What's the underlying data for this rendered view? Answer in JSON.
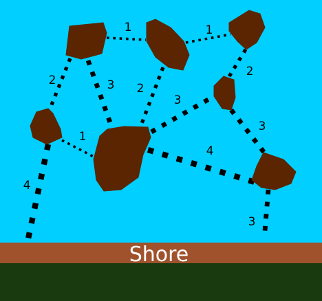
{
  "colors": {
    "water": "#00cfff",
    "rock": "#5a2500",
    "shore": "#a0522d",
    "land": "#183a0e",
    "bridge": "#000000",
    "shore_text": "#ffffff"
  },
  "shore": {
    "label": "Shore"
  },
  "rocks": [
    {
      "id": "rock-top-left"
    },
    {
      "id": "rock-top-middle"
    },
    {
      "id": "rock-top-right"
    },
    {
      "id": "rock-mid-right-small"
    },
    {
      "id": "rock-left"
    },
    {
      "id": "rock-center-large"
    },
    {
      "id": "rock-right-bottom"
    }
  ],
  "bridges": [
    {
      "id": "bridge-top-left-to-top-middle",
      "from": "rock-top-left",
      "to": "rock-top-middle",
      "label": "1"
    },
    {
      "id": "bridge-top-middle-to-top-right",
      "from": "rock-top-middle",
      "to": "rock-top-right",
      "label": "1"
    },
    {
      "id": "bridge-top-left-to-left",
      "from": "rock-top-left",
      "to": "rock-left",
      "label": "2"
    },
    {
      "id": "bridge-top-left-to-center",
      "from": "rock-top-left",
      "to": "rock-center-large",
      "label": "3"
    },
    {
      "id": "bridge-top-middle-to-center",
      "from": "rock-top-middle",
      "to": "rock-center-large",
      "label": "2"
    },
    {
      "id": "bridge-top-right-to-small",
      "from": "rock-top-right",
      "to": "rock-mid-right-small",
      "label": "2"
    },
    {
      "id": "bridge-center-to-small",
      "from": "rock-center-large",
      "to": "rock-mid-right-small",
      "label": "3"
    },
    {
      "id": "bridge-small-to-right-bottom",
      "from": "rock-mid-right-small",
      "to": "rock-right-bottom",
      "label": "3"
    },
    {
      "id": "bridge-left-to-center",
      "from": "rock-left",
      "to": "rock-center-large",
      "label": "1"
    },
    {
      "id": "bridge-center-to-right-bottom",
      "from": "rock-center-large",
      "to": "rock-right-bottom",
      "label": "4"
    },
    {
      "id": "bridge-left-to-shore",
      "from": "rock-left",
      "to": "shore",
      "label": "4"
    },
    {
      "id": "bridge-right-bottom-to-shore",
      "from": "rock-right-bottom",
      "to": "shore",
      "label": "3"
    }
  ]
}
